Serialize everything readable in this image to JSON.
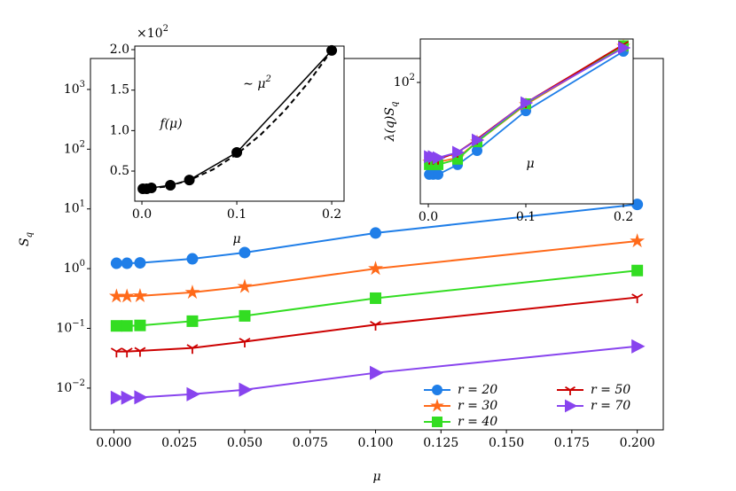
{
  "chart_data": [
    {
      "type": "line",
      "x_label": "μ",
      "y_label": {
        "text": "S",
        "sub": "q"
      },
      "x": [
        0.001,
        0.005,
        0.01,
        0.03,
        0.05,
        0.1,
        0.2
      ],
      "xlim": [
        -0.00895,
        0.20995
      ],
      "xticks": [
        {
          "value": 0,
          "label": "0.000"
        },
        {
          "value": 0.025,
          "label": "0.025"
        },
        {
          "value": 0.05,
          "label": "0.050"
        },
        {
          "value": 0.075,
          "label": "0.075"
        },
        {
          "value": 0.1,
          "label": "0.100"
        },
        {
          "value": 0.125,
          "label": "0.125"
        },
        {
          "value": 0.15,
          "label": "0.150"
        },
        {
          "value": 0.175,
          "label": "0.175"
        },
        {
          "value": 0.2,
          "label": "0.200"
        }
      ],
      "log_y": true,
      "ylim": [
        0.002,
        3300
      ],
      "yticks": [
        {
          "value": 0.01,
          "label": "10",
          "sup": "−2"
        },
        {
          "value": 0.1,
          "label": "10",
          "sup": "−1"
        },
        {
          "value": 1,
          "label": "10",
          "sup": "0"
        },
        {
          "value": 10,
          "label": "10",
          "sup": "1"
        },
        {
          "value": 100,
          "label": "10",
          "sup": "2"
        },
        {
          "value": 1000,
          "label": "10",
          "sup": "3"
        }
      ],
      "legend": "lower right",
      "series": [
        {
          "name": "r = 20",
          "color": "#1f7ee8",
          "marker": "o",
          "values": [
            1.23,
            1.23,
            1.25,
            1.46,
            1.86,
            3.95,
            11.9
          ]
        },
        {
          "name": "r = 30",
          "color": "#ff6a1a",
          "marker": "*",
          "values": [
            0.345,
            0.345,
            0.35,
            0.4,
            0.5,
            1.0,
            2.9
          ]
        },
        {
          "name": "r = 40",
          "color": "#33dd22",
          "marker": "s",
          "values": [
            0.11,
            0.11,
            0.112,
            0.132,
            0.162,
            0.32,
            0.93
          ]
        },
        {
          "name": "r = 50",
          "color": "#cc0000",
          "marker": "1",
          "values": [
            0.041,
            0.041,
            0.042,
            0.047,
            0.06,
            0.115,
            0.33
          ]
        },
        {
          "name": "r = 70",
          "color": "#8844ee",
          "marker": ">",
          "values": [
            0.0069,
            0.0069,
            0.007,
            0.0079,
            0.0094,
            0.018,
            0.05
          ]
        }
      ]
    },
    {
      "type": "line",
      "x_label": "μ",
      "y_label": "f(μ)",
      "annotation": {
        "text": "∼ μ",
        "sup": "2"
      },
      "offset": {
        "label": "×10",
        "sup": "2"
      },
      "x": [
        0.001,
        0.005,
        0.01,
        0.03,
        0.05,
        0.1,
        0.2
      ],
      "xlim": [
        -0.0075,
        0.213
      ],
      "xticks": [
        {
          "value": 0,
          "label": "0.0"
        },
        {
          "value": 0.1,
          "label": "0.1"
        },
        {
          "value": 0.2,
          "label": "0.2"
        }
      ],
      "ylim": [
        0.128,
        2.044
      ],
      "yticks": [
        0.5,
        {
          "value": 1,
          "label": "1.0"
        },
        1.5,
        {
          "value": 2,
          "label": "2.0"
        }
      ],
      "series": [
        {
          "color": "#000000",
          "marker": "o",
          "values": [
            0.281,
            0.281,
            0.292,
            0.325,
            0.39,
            0.73,
            1.99
          ]
        }
      ],
      "fit": {
        "color": "#000000",
        "style": "dashed",
        "x": [
          0,
          0.025,
          0.05,
          0.075,
          0.1,
          0.125,
          0.15,
          0.175,
          0.2
        ],
        "values": [
          0.28,
          0.307,
          0.387,
          0.52,
          0.708,
          0.948,
          1.242,
          1.589,
          1.99
        ]
      }
    },
    {
      "type": "line",
      "x_label": "μ",
      "y_label": {
        "text": "λ(q)S",
        "sub": "q"
      },
      "x": [
        0.001,
        0.005,
        0.01,
        0.03,
        0.05,
        0.1,
        0.2
      ],
      "xlim": [
        -0.0082,
        0.21
      ],
      "xticks": [
        {
          "value": 0,
          "label": "0.0"
        },
        {
          "value": 0.1,
          "label": "0.1"
        },
        {
          "value": 0.2,
          "label": "0.2"
        }
      ],
      "log_y": true,
      "ylim": [
        10.5,
        224
      ],
      "yticks": [
        {
          "value": 100,
          "label": "10",
          "sup": "2"
        }
      ],
      "series": [
        {
          "color": "#1f7ee8",
          "marker": "o",
          "values": [
            18.1,
            18.1,
            18.1,
            21.7,
            28.2,
            59,
            178
          ]
        },
        {
          "color": "#ff6a1a",
          "marker": "*",
          "values": [
            22.8,
            22.8,
            22.8,
            24.7,
            33.2,
            66.3,
            196
          ]
        },
        {
          "color": "#33dd22",
          "marker": "s",
          "values": [
            21.7,
            21.7,
            21.7,
            24,
            33.2,
            67.4,
            198
          ]
        },
        {
          "color": "#cc0000",
          "marker": "1",
          "values": [
            24,
            24,
            24,
            27.3,
            34.9,
            68.5,
            202
          ]
        },
        {
          "color": "#8844ee",
          "marker": ">",
          "values": [
            25.2,
            25.2,
            24.7,
            27.3,
            34.3,
            68.5,
            190
          ]
        }
      ]
    }
  ]
}
